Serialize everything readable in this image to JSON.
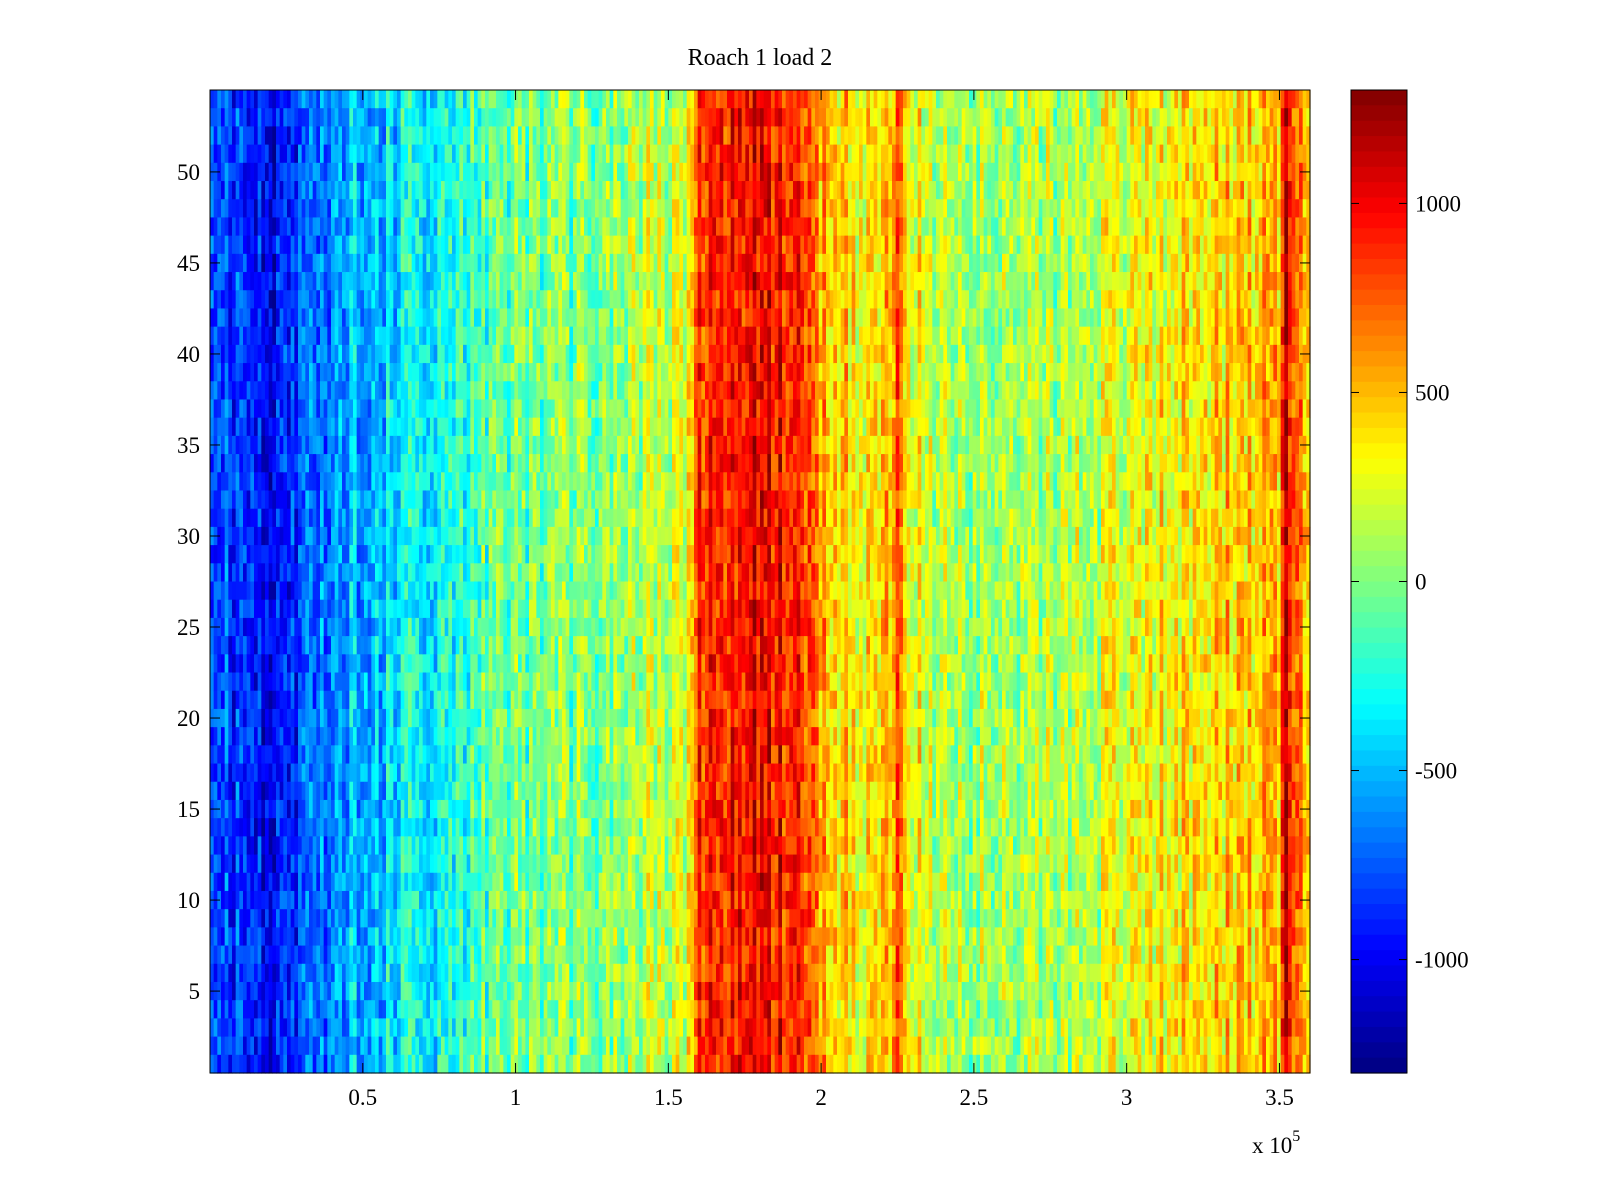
{
  "chart_data": {
    "type": "heatmap",
    "title": "Roach 1 load 2",
    "xlabel": "",
    "ylabel": "",
    "x_multiplier_label": "x 10",
    "x_multiplier_exponent": "5",
    "xlim": [
      0,
      3.6
    ],
    "ylim": [
      0.5,
      54.5
    ],
    "x_ticks": [
      "0.5",
      "1",
      "1.5",
      "2",
      "2.5",
      "3",
      "3.5"
    ],
    "x_tick_values": [
      0.5,
      1,
      1.5,
      2,
      2.5,
      3,
      3.5
    ],
    "y_ticks": [
      "5",
      "10",
      "15",
      "20",
      "25",
      "30",
      "35",
      "40",
      "45",
      "50"
    ],
    "y_tick_values": [
      5,
      10,
      15,
      20,
      25,
      30,
      35,
      40,
      45,
      50
    ],
    "rows": 54,
    "colormap": "jet",
    "colorbar": {
      "clim": [
        -1300,
        1300
      ],
      "ticks": [
        "1000",
        "500",
        "0",
        "-500",
        "-1000"
      ],
      "tick_values": [
        1000,
        500,
        0,
        -500,
        -1000
      ]
    },
    "column_profile": {
      "x": [
        0,
        0.1,
        0.2,
        0.3,
        0.35,
        0.4,
        0.5,
        0.6,
        0.7,
        0.8,
        0.9,
        1.0,
        1.2,
        1.4,
        1.55,
        1.6,
        1.7,
        1.8,
        1.9,
        2.0,
        2.1,
        2.2,
        2.25,
        2.3,
        2.4,
        2.6,
        2.8,
        3.0,
        3.2,
        3.4,
        3.5,
        3.52,
        3.6
      ],
      "values": [
        -800,
        -900,
        -950,
        -850,
        -700,
        -600,
        -500,
        -400,
        -300,
        -200,
        -100,
        -50,
        0,
        100,
        200,
        800,
        950,
        1000,
        950,
        500,
        400,
        350,
        800,
        300,
        150,
        50,
        100,
        250,
        400,
        450,
        500,
        1100,
        500
      ]
    }
  }
}
